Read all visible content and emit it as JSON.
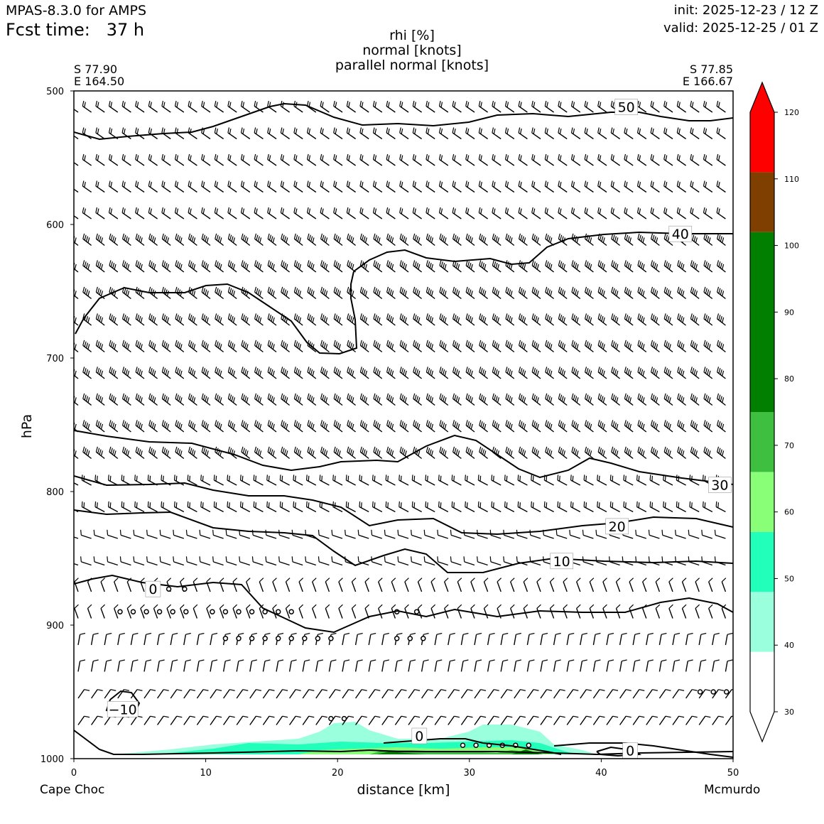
{
  "header": {
    "model": "MPAS-8.3.0 for AMPS",
    "fcst_label": "Fcst time:",
    "fcst_value": "37 h",
    "init": "init: 2025-12-23 / 12 Z",
    "valid": "valid: 2025-12-25 / 01 Z"
  },
  "title_lines": [
    "rhi [%]",
    "normal [knots]",
    "parallel normal [knots]"
  ],
  "corners": {
    "left_lat": "S 77.90",
    "left_lon": "E 164.50",
    "right_lat": "S 77.85",
    "right_lon": "E 166.67"
  },
  "locations": {
    "start": "Cape Choc",
    "end": "Mcmurdo"
  },
  "chart_data": {
    "type": "cross-section",
    "xlabel": "distance [km]",
    "ylabel": "hPa",
    "xlim": [
      0,
      50
    ],
    "ylim": [
      1000,
      500
    ],
    "x_ticks": [
      0,
      10,
      20,
      30,
      40,
      50
    ],
    "y_ticks": [
      500,
      600,
      700,
      800,
      900,
      1000
    ],
    "shaded_field": "rhi [%]",
    "colorbar": {
      "levels": [
        30,
        40,
        50,
        60,
        70,
        80,
        90,
        100,
        110,
        120
      ],
      "bands": [
        {
          "from": 30,
          "to": 39,
          "color": "#ffffff"
        },
        {
          "from": 39,
          "to": 48,
          "color": "#99ffdd"
        },
        {
          "from": 48,
          "to": 57,
          "color": "#22ffbb"
        },
        {
          "from": 57,
          "to": 66,
          "color": "#88ff77"
        },
        {
          "from": 66,
          "to": 75,
          "color": "#3fbf3f"
        },
        {
          "from": 75,
          "to": 102,
          "color": "#007f00"
        },
        {
          "from": 102,
          "to": 111,
          "color": "#7f3f00"
        },
        {
          "from": 111,
          "to": 124,
          "color": "#ff0000"
        }
      ],
      "extend": "both"
    },
    "contour_labels": [
      {
        "text": "50",
        "x": 41.9,
        "p": 512
      },
      {
        "text": "40",
        "x": 46.0,
        "p": 607
      },
      {
        "text": "30",
        "x": 49.0,
        "p": 795
      },
      {
        "text": "20",
        "x": 41.2,
        "p": 826
      },
      {
        "text": "10",
        "x": 37.0,
        "p": 852
      },
      {
        "text": "0",
        "x": 6.0,
        "p": 873
      },
      {
        "text": "0",
        "x": 26.2,
        "p": 983
      },
      {
        "text": "0",
        "x": 42.2,
        "p": 994
      },
      {
        "text": "−10",
        "x": 3.7,
        "p": 963
      }
    ],
    "calm_points": [
      {
        "p": 873,
        "x": [
          6.0,
          7.2,
          8.4
        ]
      },
      {
        "p": 890,
        "x": [
          3.5,
          4.5,
          5.5,
          6.5,
          7.5,
          8.5,
          10.5,
          11.5,
          12.5,
          13.5,
          14.5,
          15.5,
          16.5,
          24.5,
          26.0
        ]
      },
      {
        "p": 910,
        "x": [
          11.5,
          12.5,
          13.5,
          14.5,
          15.5,
          16.5,
          17.5,
          18.5,
          19.5,
          24.5,
          25.5,
          26.5
        ]
      },
      {
        "p": 950,
        "x": [
          47.5,
          48.5,
          49.5
        ]
      },
      {
        "p": 970,
        "x": [
          19.5,
          20.5
        ]
      },
      {
        "p": 990,
        "x": [
          29.5,
          30.5,
          31.5,
          32.5,
          33.5,
          34.5
        ]
      }
    ]
  }
}
